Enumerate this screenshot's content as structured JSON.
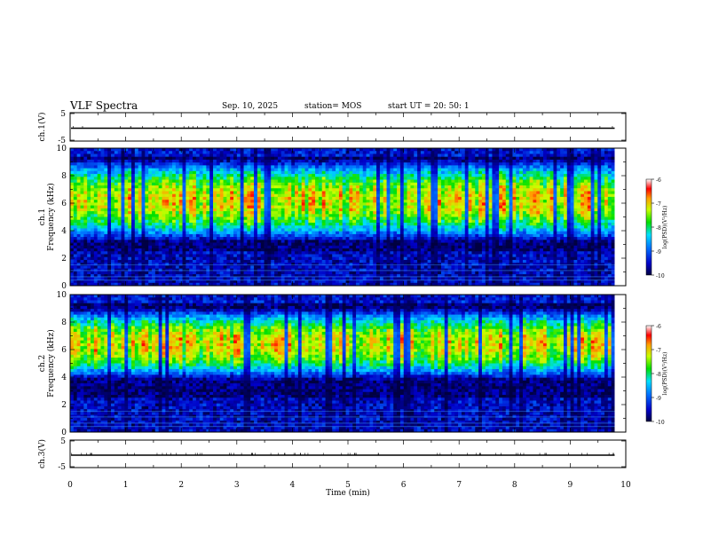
{
  "header": {
    "title": "VLF Spectra",
    "date": "Sep. 10, 2025",
    "station": "station= MOS",
    "start_ut": "start  UT  =    20: 50: 1"
  },
  "chart_data": [
    {
      "type": "line",
      "name": "ch1-waveform",
      "ylabel": "ch.1(V)",
      "ylim": [
        -5,
        5
      ],
      "yticks": [
        "5",
        "-5"
      ],
      "xlim": [
        0,
        10
      ],
      "series": [
        {
          "name": "ch.1",
          "level": 0
        }
      ]
    },
    {
      "type": "heatmap",
      "name": "ch1-spectrogram",
      "ylabel": "ch.1\nFrequency (kHz)",
      "ylim": [
        0,
        10
      ],
      "yticks": [
        "0",
        "2",
        "4",
        "6",
        "8",
        "10"
      ],
      "xlim": [
        0,
        10
      ],
      "data_end_min": 9.8,
      "band_center_khz": 6.2,
      "band_halfwidth_khz": 3.0,
      "colorbar": {
        "label": "log(PSD)(V²/Hz)",
        "min": -10,
        "max": -6,
        "ticks": [
          "-6",
          "-7",
          "-8",
          "-9",
          "-10"
        ]
      }
    },
    {
      "type": "heatmap",
      "name": "ch2-spectrogram",
      "ylabel": "ch.2\nFrequency (kHz)",
      "ylim": [
        0,
        10
      ],
      "yticks": [
        "0",
        "2",
        "4",
        "6",
        "8",
        "10"
      ],
      "xlim": [
        0,
        10
      ],
      "data_end_min": 9.8,
      "band_center_khz": 6.4,
      "band_halfwidth_khz": 2.6,
      "colorbar": {
        "label": "log(PSD)(V²/Hz)",
        "min": -10,
        "max": -6,
        "ticks": [
          "-6",
          "-7",
          "-8",
          "-9",
          "-10"
        ]
      }
    },
    {
      "type": "line",
      "name": "ch3-waveform",
      "ylabel": "ch.3(V)",
      "ylim": [
        -5,
        5
      ],
      "yticks": [
        "5",
        "-5"
      ],
      "xlim": [
        0,
        10
      ],
      "xlabel": "Time  (min)",
      "xticks": [
        "0",
        "1",
        "2",
        "3",
        "4",
        "5",
        "6",
        "7",
        "8",
        "9",
        "10"
      ],
      "series": [
        {
          "name": "ch.3",
          "level": 0
        }
      ]
    }
  ]
}
